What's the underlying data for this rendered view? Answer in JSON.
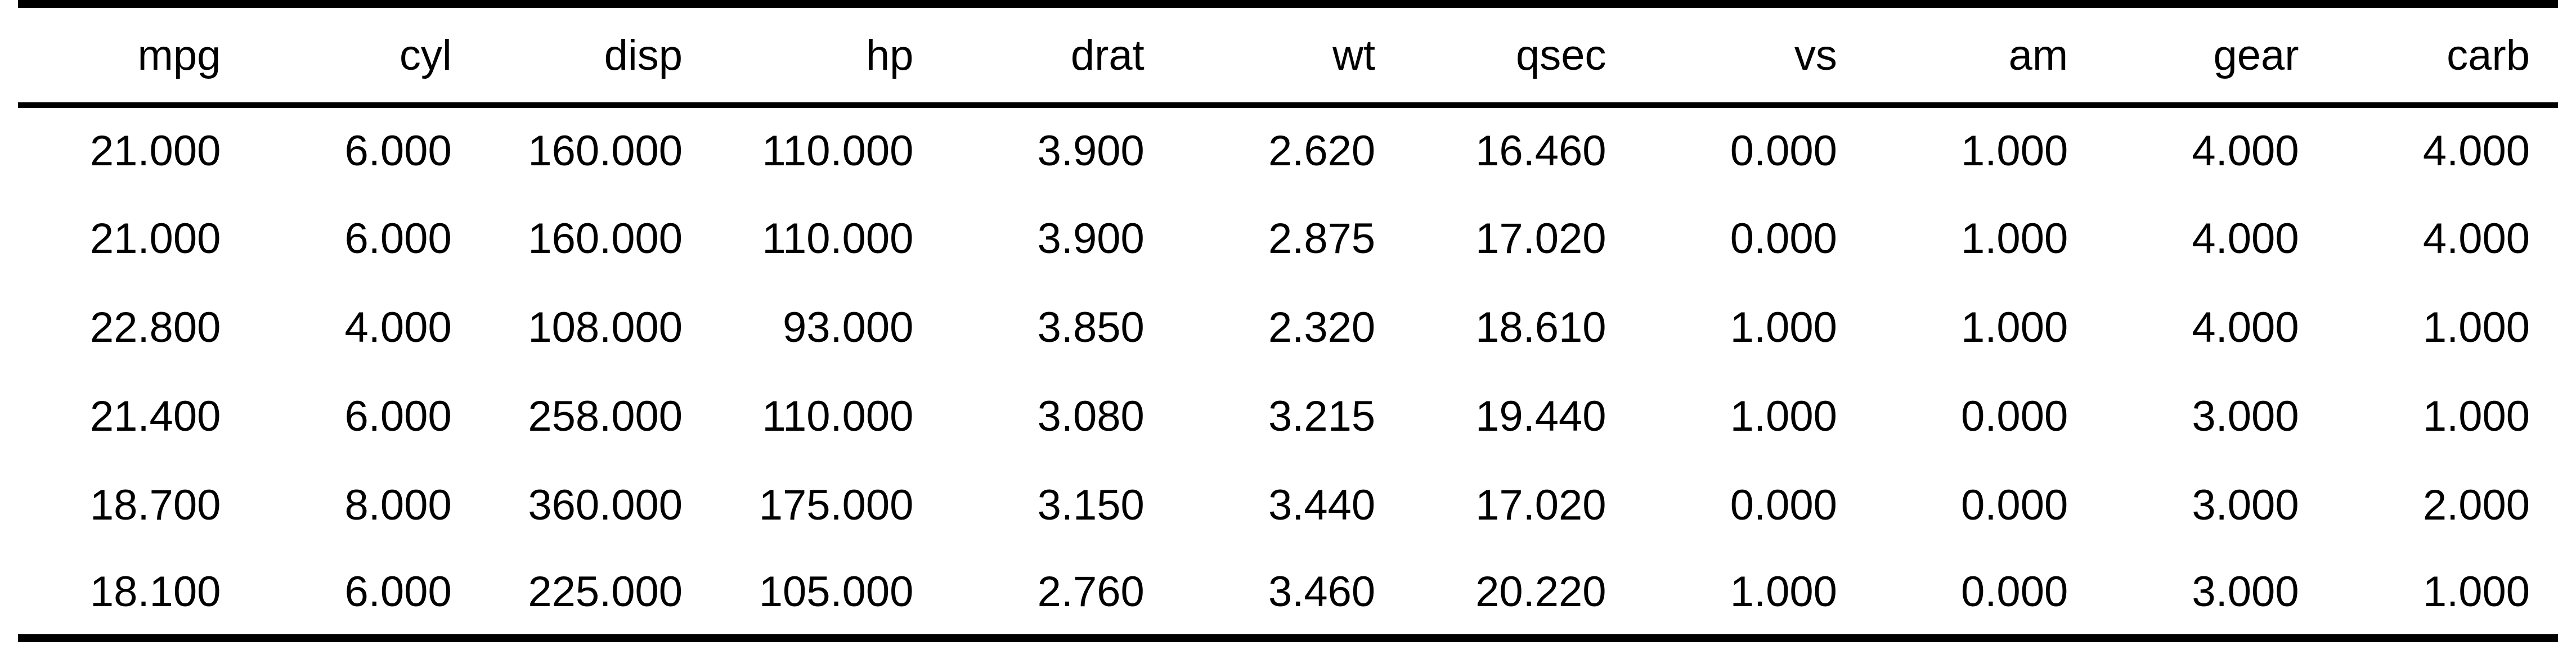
{
  "table": {
    "columns": [
      "mpg",
      "cyl",
      "disp",
      "hp",
      "drat",
      "wt",
      "qsec",
      "vs",
      "am",
      "gear",
      "carb"
    ],
    "rows": [
      [
        "21.000",
        "6.000",
        "160.000",
        "110.000",
        "3.900",
        "2.620",
        "16.460",
        "0.000",
        "1.000",
        "4.000",
        "4.000"
      ],
      [
        "21.000",
        "6.000",
        "160.000",
        "110.000",
        "3.900",
        "2.875",
        "17.020",
        "0.000",
        "1.000",
        "4.000",
        "4.000"
      ],
      [
        "22.800",
        "4.000",
        "108.000",
        "93.000",
        "3.850",
        "2.320",
        "18.610",
        "1.000",
        "1.000",
        "4.000",
        "1.000"
      ],
      [
        "21.400",
        "6.000",
        "258.000",
        "110.000",
        "3.080",
        "3.215",
        "19.440",
        "1.000",
        "0.000",
        "3.000",
        "1.000"
      ],
      [
        "18.700",
        "8.000",
        "360.000",
        "175.000",
        "3.150",
        "3.440",
        "17.020",
        "0.000",
        "0.000",
        "3.000",
        "2.000"
      ],
      [
        "18.100",
        "6.000",
        "225.000",
        "105.000",
        "2.760",
        "3.460",
        "20.220",
        "1.000",
        "0.000",
        "3.000",
        "1.000"
      ]
    ]
  }
}
